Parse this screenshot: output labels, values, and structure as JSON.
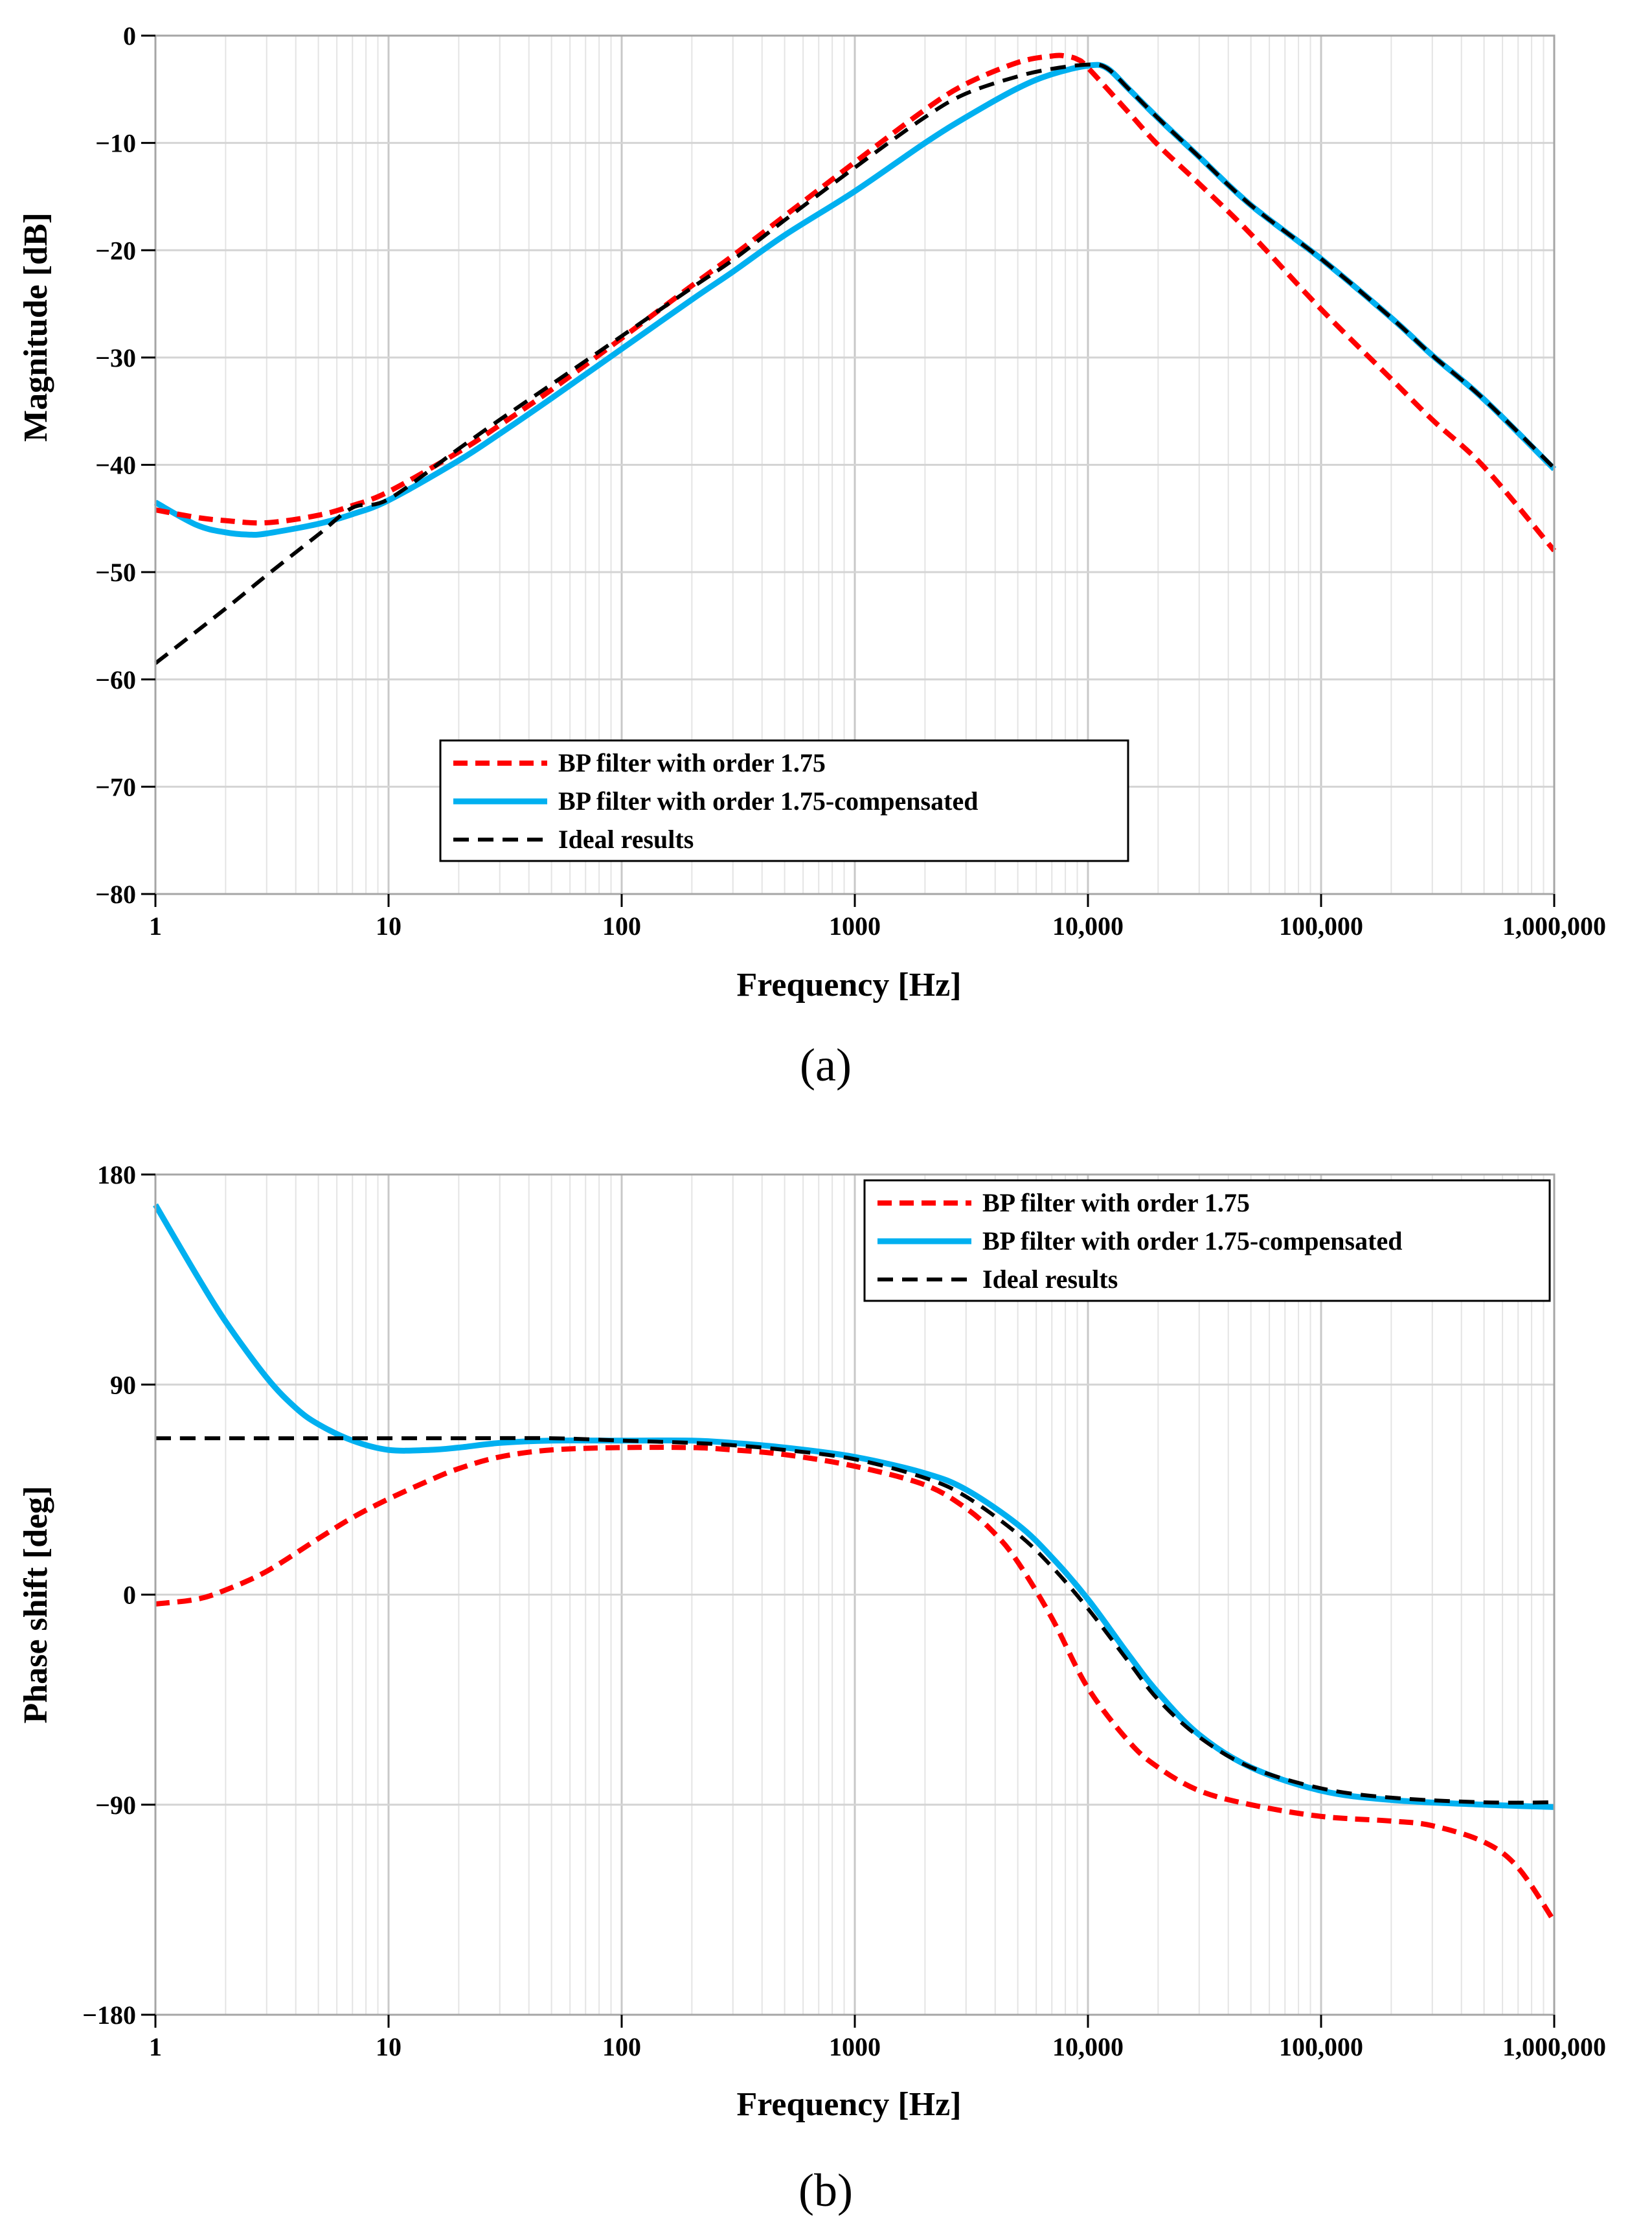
{
  "figure": {
    "panels": [
      "(a)",
      "(b)"
    ]
  },
  "chart_data": [
    {
      "type": "line",
      "panel_label": "(a)",
      "title": "",
      "xlabel": "Frequency [Hz]",
      "ylabel": "Magnitude [dB]",
      "xscale": "log",
      "xlim": [
        1,
        1000000
      ],
      "ylim": [
        -80,
        0
      ],
      "xticks": [
        {
          "value": 1,
          "label": "1"
        },
        {
          "value": 10,
          "label": "10"
        },
        {
          "value": 100,
          "label": "100"
        },
        {
          "value": 1000,
          "label": "1000"
        },
        {
          "value": 10000,
          "label": "10,000"
        },
        {
          "value": 100000,
          "label": "100,000"
        },
        {
          "value": 1000000,
          "label": "1,000,000"
        }
      ],
      "yticks": [
        {
          "value": 0,
          "label": "0"
        },
        {
          "value": -10,
          "label": "−10"
        },
        {
          "value": -20,
          "label": "−20"
        },
        {
          "value": -30,
          "label": "−30"
        },
        {
          "value": -40,
          "label": "−40"
        },
        {
          "value": -50,
          "label": "−50"
        },
        {
          "value": -60,
          "label": "−60"
        },
        {
          "value": -70,
          "label": "−70"
        },
        {
          "value": -80,
          "label": "−80"
        }
      ],
      "grid": true,
      "legend_position": "bottom-center",
      "series": [
        {
          "name": "BP filter with order 1.75",
          "color": "#ff0000",
          "style": "dashed",
          "x": [
            1,
            1.5,
            2,
            3,
            5,
            7,
            10,
            20,
            30,
            50,
            100,
            200,
            300,
            500,
            1000,
            2000,
            3000,
            5000,
            7000,
            8000,
            9000,
            10000,
            15000,
            20000,
            30000,
            50000,
            100000,
            200000,
            300000,
            500000,
            1000000
          ],
          "y": [
            -44.2,
            -44.9,
            -45.2,
            -45.4,
            -44.7,
            -43.8,
            -42.5,
            -38.8,
            -36.3,
            -33.0,
            -28.2,
            -23.3,
            -20.5,
            -16.8,
            -11.8,
            -6.9,
            -4.5,
            -2.5,
            -1.9,
            -1.9,
            -2.2,
            -3.0,
            -7.2,
            -10.2,
            -13.8,
            -18.5,
            -25.5,
            -32.0,
            -35.8,
            -40.2,
            -48.0
          ]
        },
        {
          "name": "BP filter with order 1.75-compensated",
          "color": "#00b0f0",
          "style": "solid",
          "x": [
            1,
            1.5,
            2,
            2.5,
            3,
            5,
            7,
            10,
            20,
            30,
            50,
            100,
            200,
            300,
            500,
            1000,
            2000,
            3000,
            5000,
            7000,
            10000,
            12000,
            15000,
            20000,
            30000,
            50000,
            100000,
            200000,
            300000,
            500000,
            1000000
          ],
          "y": [
            -43.5,
            -45.6,
            -46.3,
            -46.5,
            -46.4,
            -45.5,
            -44.6,
            -43.3,
            -39.6,
            -37.1,
            -33.8,
            -29.2,
            -24.6,
            -22.0,
            -18.6,
            -14.5,
            -10.0,
            -7.6,
            -4.9,
            -3.6,
            -2.8,
            -3.0,
            -5.0,
            -7.7,
            -11.3,
            -15.8,
            -20.8,
            -26.3,
            -29.8,
            -33.9,
            -40.4
          ]
        },
        {
          "name": "Ideal results",
          "color": "#000000",
          "style": "dashed",
          "x": [
            1,
            2,
            3,
            5,
            7,
            10,
            20,
            30,
            50,
            100,
            200,
            300,
            500,
            1000,
            2000,
            3000,
            5000,
            7000,
            10000,
            12000,
            15000,
            20000,
            30000,
            50000,
            100000,
            200000,
            300000,
            500000,
            1000000
          ],
          "y": [
            -58.5,
            -53.4,
            -50.3,
            -46.5,
            -44.0,
            -43.2,
            -38.5,
            -35.8,
            -32.5,
            -28.0,
            -23.5,
            -20.9,
            -17.2,
            -12.3,
            -7.6,
            -5.4,
            -3.8,
            -3.1,
            -2.7,
            -3.0,
            -5.0,
            -7.7,
            -11.3,
            -15.8,
            -20.8,
            -26.3,
            -29.8,
            -33.9,
            -40.3
          ]
        }
      ]
    },
    {
      "type": "line",
      "panel_label": "(b)",
      "title": "",
      "xlabel": "Frequency [Hz]",
      "ylabel": "Phase shift [deg]",
      "xscale": "log",
      "xlim": [
        1,
        1000000
      ],
      "ylim": [
        -180,
        180
      ],
      "xticks": [
        {
          "value": 1,
          "label": "1"
        },
        {
          "value": 10,
          "label": "10"
        },
        {
          "value": 100,
          "label": "100"
        },
        {
          "value": 1000,
          "label": "1000"
        },
        {
          "value": 10000,
          "label": "10,000"
        },
        {
          "value": 100000,
          "label": "100,000"
        },
        {
          "value": 1000000,
          "label": "1,000,000"
        }
      ],
      "yticks": [
        {
          "value": 180,
          "label": "180"
        },
        {
          "value": 90,
          "label": "90"
        },
        {
          "value": 0,
          "label": "0"
        },
        {
          "value": -90,
          "label": "−90"
        },
        {
          "value": -180,
          "label": "−180"
        }
      ],
      "grid": true,
      "legend_position": "top-right",
      "series": [
        {
          "name": "BP filter with order 1.75",
          "color": "#ff0000",
          "style": "dashed",
          "x": [
            1,
            1.5,
            2,
            3,
            5,
            7,
            10,
            15,
            20,
            30,
            50,
            100,
            200,
            300,
            500,
            1000,
            2000,
            3000,
            4000,
            5000,
            7000,
            10000,
            15000,
            20000,
            30000,
            50000,
            100000,
            200000,
            300000,
            500000,
            700000,
            1000000
          ],
          "y": [
            -4,
            -2,
            2,
            10,
            24,
            33,
            41,
            49,
            54,
            59,
            62,
            63,
            63,
            62,
            60,
            55,
            47,
            37,
            26,
            14,
            -10,
            -40,
            -63,
            -74,
            -84,
            -90,
            -95,
            -97,
            -99,
            -106,
            -117,
            -140
          ]
        },
        {
          "name": "BP filter with order 1.75-compensated",
          "color": "#00b0f0",
          "style": "solid",
          "x": [
            1,
            1.5,
            2,
            3,
            4,
            5,
            7,
            10,
            15,
            20,
            30,
            50,
            100,
            200,
            300,
            500,
            1000,
            2000,
            3000,
            5000,
            7000,
            10000,
            15000,
            20000,
            30000,
            50000,
            100000,
            200000,
            500000,
            1000000
          ],
          "y": [
            167,
            137,
            117,
            93,
            80,
            73,
            66,
            62,
            62,
            63,
            65,
            66,
            66,
            66,
            65,
            63,
            59,
            52,
            45,
            30,
            16,
            -2,
            -26,
            -42,
            -60,
            -74,
            -84,
            -88,
            -90,
            -91
          ]
        },
        {
          "name": "Ideal results",
          "color": "#000000",
          "style": "dashed",
          "x": [
            1,
            2,
            5,
            10,
            20,
            50,
            100,
            200,
            300,
            500,
            1000,
            2000,
            3000,
            5000,
            7000,
            10000,
            15000,
            20000,
            30000,
            50000,
            100000,
            200000,
            500000,
            1000000
          ],
          "y": [
            67,
            67,
            67,
            67,
            67,
            67,
            66,
            65,
            64,
            62,
            58,
            50,
            42,
            26,
            12,
            -6,
            -29,
            -45,
            -61,
            -74,
            -83,
            -87,
            -89,
            -89
          ]
        }
      ]
    }
  ]
}
